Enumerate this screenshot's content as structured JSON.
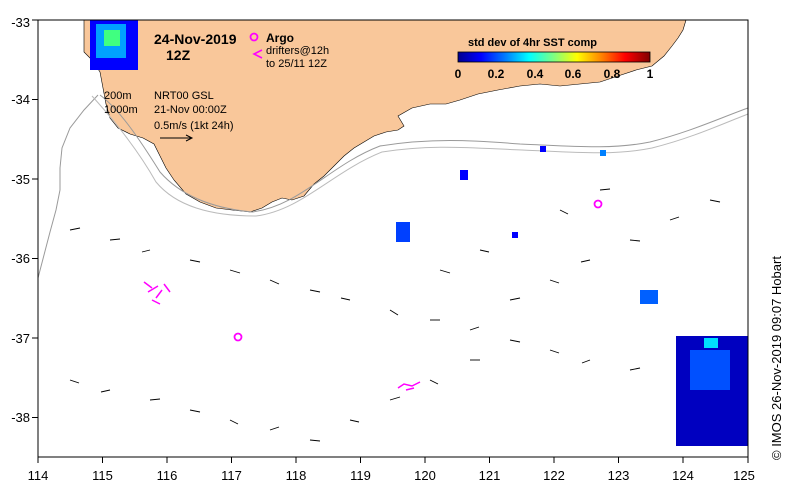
{
  "map": {
    "date": "24-Nov-2019",
    "hour": "12Z",
    "x_ticks": [
      "114",
      "115",
      "116",
      "117",
      "118",
      "119",
      "120",
      "121",
      "122",
      "123",
      "124",
      "125"
    ],
    "y_ticks": [
      "-33",
      "-34",
      "-35",
      "-36",
      "-37",
      "-38"
    ],
    "land_color": "#f9c79a",
    "contour_200m_label": "200m",
    "contour_1000m_label": "1000m",
    "currents_source": "NRT00 GSL",
    "currents_time": "21-Nov 00:00Z",
    "scale_arrow_label": "0.5m/s (1kt 24h)",
    "argo_label": "Argo",
    "argo_color": "#ff00ff",
    "drifters_label": "drifters@12h",
    "drifters_to_label": "to 25/11 12Z",
    "drifter_color": "#ff00ff",
    "credit": "© IMOS 26-Nov-2019 09:07 Hobart"
  },
  "colorbar": {
    "title": "std dev of 4hr SST comp",
    "ticks": [
      "0",
      "0.2",
      "0.4",
      "0.6",
      "0.8",
      "1"
    ],
    "colors": [
      "#00008f",
      "#0000ff",
      "#0080ff",
      "#00ffff",
      "#80ff80",
      "#ffff00",
      "#ff8000",
      "#ff0000",
      "#800000"
    ]
  }
}
